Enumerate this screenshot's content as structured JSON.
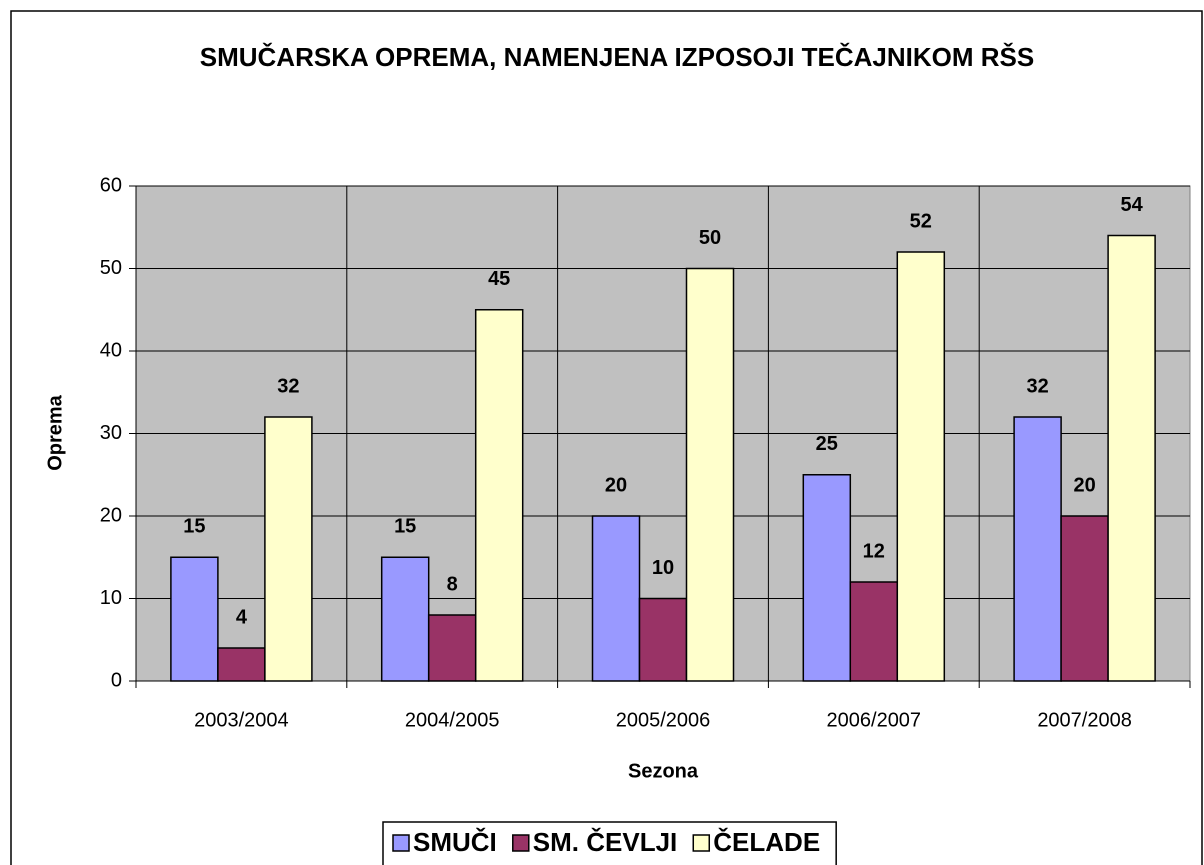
{
  "chart_data": {
    "type": "bar",
    "title": "SMUČARSKA OPREMA, NAMENJENA IZPOSOJI TEČAJNIKOM RŠS",
    "x_label": "Sezona",
    "y_label": "Oprema",
    "categories": [
      "2003/2004",
      "2004/2005",
      "2005/2006",
      "2006/2007",
      "2007/2008"
    ],
    "series": [
      {
        "name": "SMUČI",
        "color": "#9999ff",
        "values": [
          15,
          15,
          20,
          25,
          32
        ]
      },
      {
        "name": "SM. ČEVLJI",
        "color": "#993366",
        "values": [
          4,
          8,
          10,
          12,
          20
        ]
      },
      {
        "name": "ČELADE",
        "color": "#ffffcc",
        "values": [
          32,
          45,
          50,
          52,
          54
        ]
      }
    ],
    "ylim": [
      0,
      60
    ],
    "yticks": [
      0,
      10,
      20,
      30,
      40,
      50,
      60
    ],
    "grid": true,
    "legend": "bottom"
  }
}
